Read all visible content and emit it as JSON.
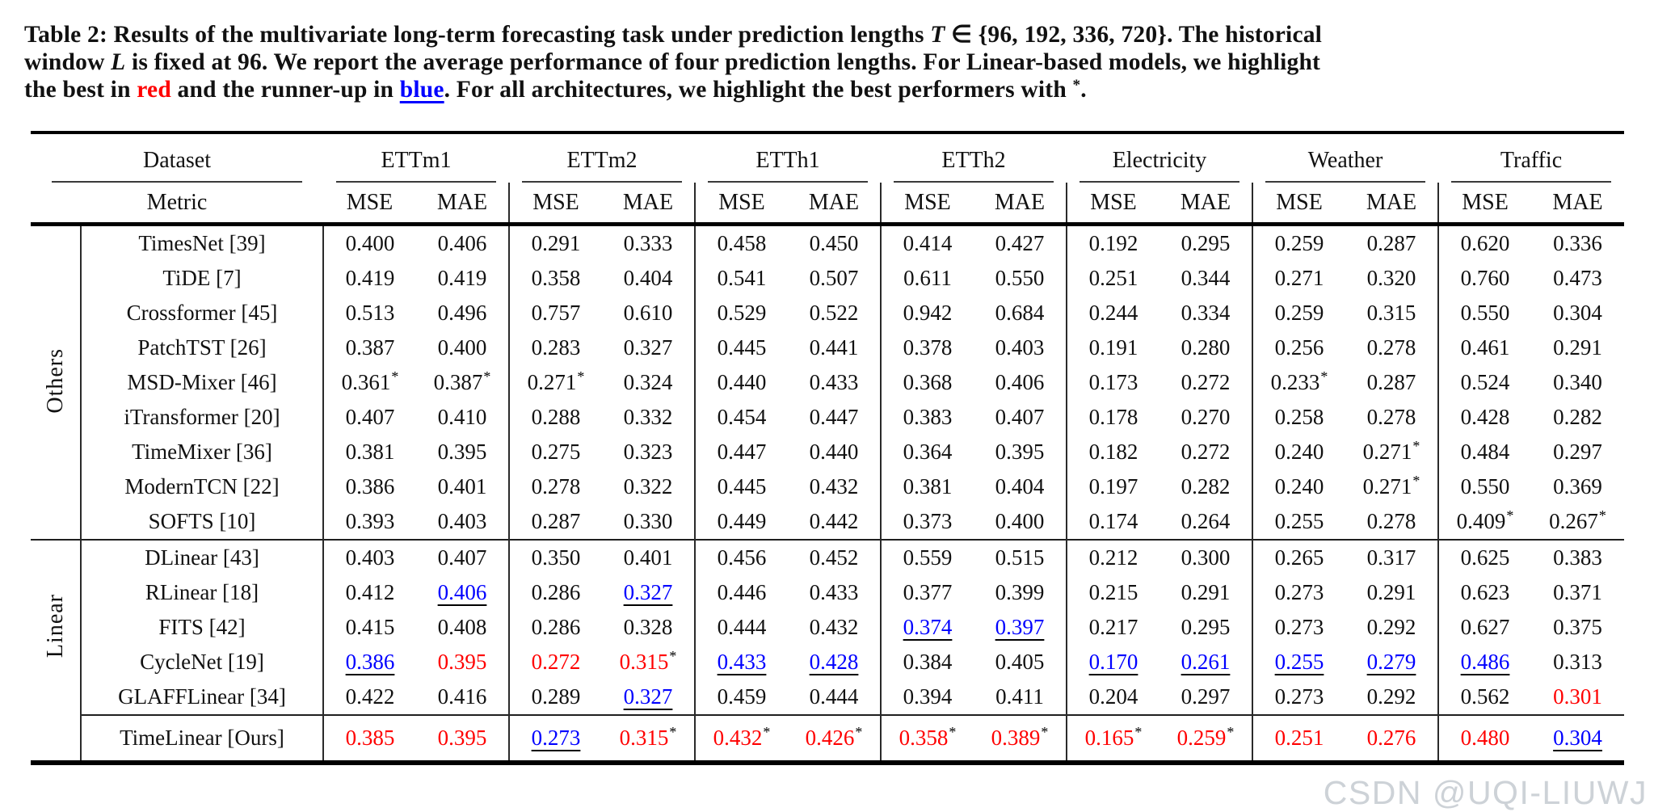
{
  "caption": {
    "segments": [
      {
        "t": "Table 2: Results of the multivariate long-term forecasting task under prediction lengths ",
        "s": "b"
      },
      {
        "t": "T",
        "s": "bi"
      },
      {
        "t": " ∈ {96, 192, 336, 720}. The historical",
        "s": "b",
        "br": true
      },
      {
        "t": "window ",
        "s": "b"
      },
      {
        "t": "L",
        "s": "bi"
      },
      {
        "t": " is fixed at 96. We report the average performance of four prediction lengths. For Linear-based models, we highlight",
        "s": "b",
        "br": true
      },
      {
        "t": "the best in ",
        "s": "b"
      },
      {
        "t": "red",
        "s": "red"
      },
      {
        "t": " and the runner-up in ",
        "s": "b"
      },
      {
        "t": "blue",
        "s": "blue"
      },
      {
        "t": ". For all architectures, we highlight the best performers with ",
        "s": "b"
      },
      {
        "t": "*",
        "s": "sup"
      },
      {
        "t": ".",
        "s": "b"
      }
    ]
  },
  "colors": {
    "best": "#ff0000",
    "runner_up": "#0000ff",
    "watermark": "#cdd2d7"
  },
  "table": {
    "header": {
      "dataset_label": "Dataset",
      "metric_label": "Metric"
    },
    "datasets": [
      "ETTm1",
      "ETTm2",
      "ETTh1",
      "ETTh2",
      "Electricity",
      "Weather",
      "Traffic"
    ],
    "metrics": [
      "MSE",
      "MAE"
    ],
    "legend": {
      "r": "best (red)",
      "b": "runner-up (blue, underlined)",
      "*": "best across all architectures"
    },
    "groups": [
      {
        "label": "Others",
        "rows": [
          {
            "model": "TimesNet [39]",
            "values": [
              [
                "0.400",
                ""
              ],
              [
                "0.406",
                ""
              ],
              [
                "0.291",
                ""
              ],
              [
                "0.333",
                ""
              ],
              [
                "0.458",
                ""
              ],
              [
                "0.450",
                ""
              ],
              [
                "0.414",
                ""
              ],
              [
                "0.427",
                ""
              ],
              [
                "0.192",
                ""
              ],
              [
                "0.295",
                ""
              ],
              [
                "0.259",
                ""
              ],
              [
                "0.287",
                ""
              ],
              [
                "0.620",
                ""
              ],
              [
                "0.336",
                ""
              ]
            ]
          },
          {
            "model": "TiDE [7]",
            "values": [
              [
                "0.419",
                ""
              ],
              [
                "0.419",
                ""
              ],
              [
                "0.358",
                ""
              ],
              [
                "0.404",
                ""
              ],
              [
                "0.541",
                ""
              ],
              [
                "0.507",
                ""
              ],
              [
                "0.611",
                ""
              ],
              [
                "0.550",
                ""
              ],
              [
                "0.251",
                ""
              ],
              [
                "0.344",
                ""
              ],
              [
                "0.271",
                ""
              ],
              [
                "0.320",
                ""
              ],
              [
                "0.760",
                ""
              ],
              [
                "0.473",
                ""
              ]
            ]
          },
          {
            "model": "Crossformer [45]",
            "values": [
              [
                "0.513",
                ""
              ],
              [
                "0.496",
                ""
              ],
              [
                "0.757",
                ""
              ],
              [
                "0.610",
                ""
              ],
              [
                "0.529",
                ""
              ],
              [
                "0.522",
                ""
              ],
              [
                "0.942",
                ""
              ],
              [
                "0.684",
                ""
              ],
              [
                "0.244",
                ""
              ],
              [
                "0.334",
                ""
              ],
              [
                "0.259",
                ""
              ],
              [
                "0.315",
                ""
              ],
              [
                "0.550",
                ""
              ],
              [
                "0.304",
                ""
              ]
            ]
          },
          {
            "model": "PatchTST [26]",
            "values": [
              [
                "0.387",
                ""
              ],
              [
                "0.400",
                ""
              ],
              [
                "0.283",
                ""
              ],
              [
                "0.327",
                ""
              ],
              [
                "0.445",
                ""
              ],
              [
                "0.441",
                ""
              ],
              [
                "0.378",
                ""
              ],
              [
                "0.403",
                ""
              ],
              [
                "0.191",
                ""
              ],
              [
                "0.280",
                ""
              ],
              [
                "0.256",
                ""
              ],
              [
                "0.278",
                ""
              ],
              [
                "0.461",
                ""
              ],
              [
                "0.291",
                ""
              ]
            ]
          },
          {
            "model": "MSD-Mixer [46]",
            "values": [
              [
                "0.361",
                "*"
              ],
              [
                "0.387",
                "*"
              ],
              [
                "0.271",
                "*"
              ],
              [
                "0.324",
                ""
              ],
              [
                "0.440",
                ""
              ],
              [
                "0.433",
                ""
              ],
              [
                "0.368",
                ""
              ],
              [
                "0.406",
                ""
              ],
              [
                "0.173",
                ""
              ],
              [
                "0.272",
                ""
              ],
              [
                "0.233",
                "*"
              ],
              [
                "0.287",
                ""
              ],
              [
                "0.524",
                ""
              ],
              [
                "0.340",
                ""
              ]
            ]
          },
          {
            "model": "iTransformer [20]",
            "values": [
              [
                "0.407",
                ""
              ],
              [
                "0.410",
                ""
              ],
              [
                "0.288",
                ""
              ],
              [
                "0.332",
                ""
              ],
              [
                "0.454",
                ""
              ],
              [
                "0.447",
                ""
              ],
              [
                "0.383",
                ""
              ],
              [
                "0.407",
                ""
              ],
              [
                "0.178",
                ""
              ],
              [
                "0.270",
                ""
              ],
              [
                "0.258",
                ""
              ],
              [
                "0.278",
                ""
              ],
              [
                "0.428",
                ""
              ],
              [
                "0.282",
                ""
              ]
            ]
          },
          {
            "model": "TimeMixer [36]",
            "values": [
              [
                "0.381",
                ""
              ],
              [
                "0.395",
                ""
              ],
              [
                "0.275",
                ""
              ],
              [
                "0.323",
                ""
              ],
              [
                "0.447",
                ""
              ],
              [
                "0.440",
                ""
              ],
              [
                "0.364",
                ""
              ],
              [
                "0.395",
                ""
              ],
              [
                "0.182",
                ""
              ],
              [
                "0.272",
                ""
              ],
              [
                "0.240",
                ""
              ],
              [
                "0.271",
                "*"
              ],
              [
                "0.484",
                ""
              ],
              [
                "0.297",
                ""
              ]
            ]
          },
          {
            "model": "ModernTCN [22]",
            "values": [
              [
                "0.386",
                ""
              ],
              [
                "0.401",
                ""
              ],
              [
                "0.278",
                ""
              ],
              [
                "0.322",
                ""
              ],
              [
                "0.445",
                ""
              ],
              [
                "0.432",
                ""
              ],
              [
                "0.381",
                ""
              ],
              [
                "0.404",
                ""
              ],
              [
                "0.197",
                ""
              ],
              [
                "0.282",
                ""
              ],
              [
                "0.240",
                ""
              ],
              [
                "0.271",
                "*"
              ],
              [
                "0.550",
                ""
              ],
              [
                "0.369",
                ""
              ]
            ]
          },
          {
            "model": "SOFTS [10]",
            "values": [
              [
                "0.393",
                ""
              ],
              [
                "0.403",
                ""
              ],
              [
                "0.287",
                ""
              ],
              [
                "0.330",
                ""
              ],
              [
                "0.449",
                ""
              ],
              [
                "0.442",
                ""
              ],
              [
                "0.373",
                ""
              ],
              [
                "0.400",
                ""
              ],
              [
                "0.174",
                ""
              ],
              [
                "0.264",
                ""
              ],
              [
                "0.255",
                ""
              ],
              [
                "0.278",
                ""
              ],
              [
                "0.409",
                "*"
              ],
              [
                "0.267",
                "*"
              ]
            ]
          }
        ]
      },
      {
        "label": "Linear",
        "separator_top": true,
        "rows": [
          {
            "model": "DLinear [43]",
            "values": [
              [
                "0.403",
                ""
              ],
              [
                "0.407",
                ""
              ],
              [
                "0.350",
                ""
              ],
              [
                "0.401",
                ""
              ],
              [
                "0.456",
                ""
              ],
              [
                "0.452",
                ""
              ],
              [
                "0.559",
                ""
              ],
              [
                "0.515",
                ""
              ],
              [
                "0.212",
                ""
              ],
              [
                "0.300",
                ""
              ],
              [
                "0.265",
                ""
              ],
              [
                "0.317",
                ""
              ],
              [
                "0.625",
                ""
              ],
              [
                "0.383",
                ""
              ]
            ]
          },
          {
            "model": "RLinear [18]",
            "values": [
              [
                "0.412",
                ""
              ],
              [
                "0.406",
                "b"
              ],
              [
                "0.286",
                ""
              ],
              [
                "0.327",
                "b"
              ],
              [
                "0.446",
                ""
              ],
              [
                "0.433",
                ""
              ],
              [
                "0.377",
                ""
              ],
              [
                "0.399",
                ""
              ],
              [
                "0.215",
                ""
              ],
              [
                "0.291",
                ""
              ],
              [
                "0.273",
                ""
              ],
              [
                "0.291",
                ""
              ],
              [
                "0.623",
                ""
              ],
              [
                "0.371",
                ""
              ]
            ]
          },
          {
            "model": "FITS [42]",
            "values": [
              [
                "0.415",
                ""
              ],
              [
                "0.408",
                ""
              ],
              [
                "0.286",
                ""
              ],
              [
                "0.328",
                ""
              ],
              [
                "0.444",
                ""
              ],
              [
                "0.432",
                ""
              ],
              [
                "0.374",
                "b"
              ],
              [
                "0.397",
                "b"
              ],
              [
                "0.217",
                ""
              ],
              [
                "0.295",
                ""
              ],
              [
                "0.273",
                ""
              ],
              [
                "0.292",
                ""
              ],
              [
                "0.627",
                ""
              ],
              [
                "0.375",
                ""
              ]
            ]
          },
          {
            "model": "CycleNet [19]",
            "values": [
              [
                "0.386",
                "b"
              ],
              [
                "0.395",
                "r"
              ],
              [
                "0.272",
                "r"
              ],
              [
                "0.315",
                "r*"
              ],
              [
                "0.433",
                "b"
              ],
              [
                "0.428",
                "b"
              ],
              [
                "0.384",
                ""
              ],
              [
                "0.405",
                ""
              ],
              [
                "0.170",
                "b"
              ],
              [
                "0.261",
                "b"
              ],
              [
                "0.255",
                "b"
              ],
              [
                "0.279",
                "b"
              ],
              [
                "0.486",
                "b"
              ],
              [
                "0.313",
                ""
              ]
            ]
          },
          {
            "model": "GLAFFLinear [34]",
            "values": [
              [
                "0.422",
                ""
              ],
              [
                "0.416",
                ""
              ],
              [
                "0.289",
                ""
              ],
              [
                "0.327",
                "b"
              ],
              [
                "0.459",
                ""
              ],
              [
                "0.444",
                ""
              ],
              [
                "0.394",
                ""
              ],
              [
                "0.411",
                ""
              ],
              [
                "0.204",
                ""
              ],
              [
                "0.297",
                ""
              ],
              [
                "0.273",
                ""
              ],
              [
                "0.292",
                ""
              ],
              [
                "0.562",
                ""
              ],
              [
                "0.301",
                "r"
              ]
            ]
          }
        ]
      },
      {
        "label": "",
        "ours": true,
        "rows": [
          {
            "model": "TimeLinear [Ours]",
            "values": [
              [
                "0.385",
                "r"
              ],
              [
                "0.395",
                "r"
              ],
              [
                "0.273",
                "b"
              ],
              [
                "0.315",
                "r*"
              ],
              [
                "0.432",
                "r*"
              ],
              [
                "0.426",
                "r*"
              ],
              [
                "0.358",
                "r*"
              ],
              [
                "0.389",
                "r*"
              ],
              [
                "0.165",
                "r*"
              ],
              [
                "0.259",
                "r*"
              ],
              [
                "0.251",
                "r"
              ],
              [
                "0.276",
                "r"
              ],
              [
                "0.480",
                "r"
              ],
              [
                "0.304",
                "b"
              ]
            ]
          }
        ]
      }
    ]
  },
  "watermark": "CSDN @UQI-LIUWJ"
}
